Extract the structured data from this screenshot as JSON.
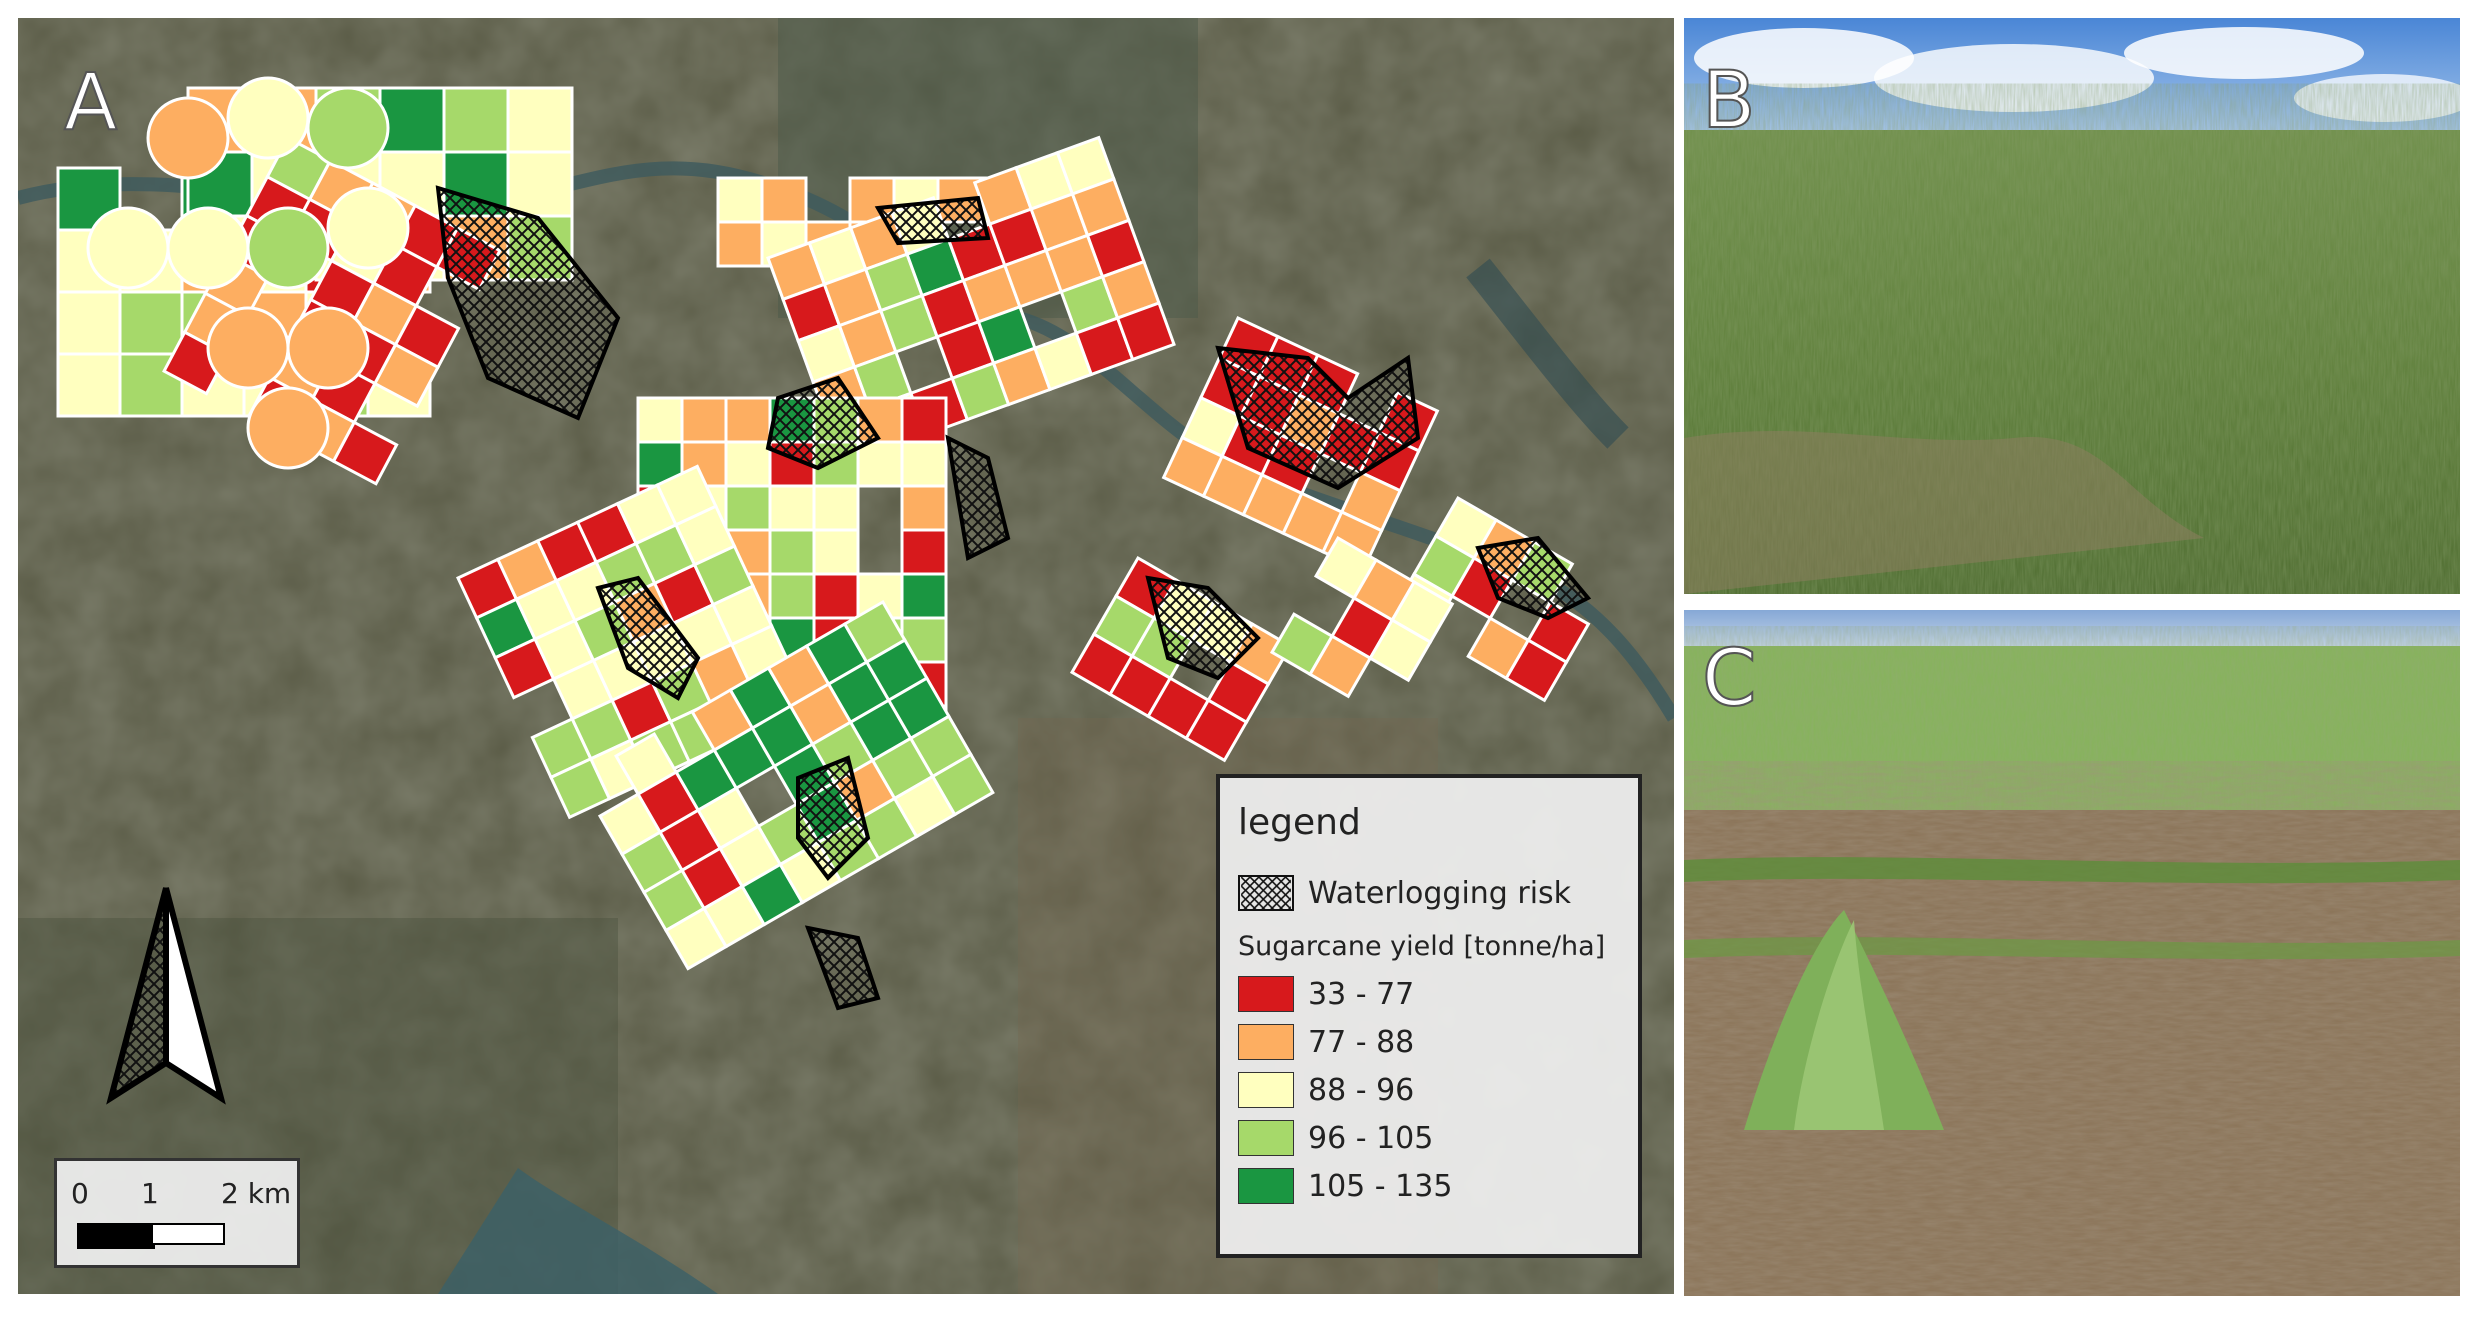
{
  "panels": {
    "a": {
      "letter": "A"
    },
    "b": {
      "letter": "B"
    },
    "c": {
      "letter": "C"
    }
  },
  "legend": {
    "title": "legend",
    "waterlogging_label": "Waterlogging risk",
    "yield_title": "Sugarcane yield [tonne/ha]",
    "classes": [
      {
        "label": "33 - 77",
        "color": "#d7191c"
      },
      {
        "label": "77 - 88",
        "color": "#fdae61"
      },
      {
        "label": "88 - 96",
        "color": "#ffffbf"
      },
      {
        "label": "96 - 105",
        "color": "#a6d96a"
      },
      {
        "label": "105 - 135",
        "color": "#1a9641"
      }
    ]
  },
  "scale": {
    "labels": [
      "0",
      "1",
      "2 km"
    ]
  },
  "icons": {
    "north_arrow": "north-arrow-icon",
    "hatch": "crosshatch-pattern"
  }
}
